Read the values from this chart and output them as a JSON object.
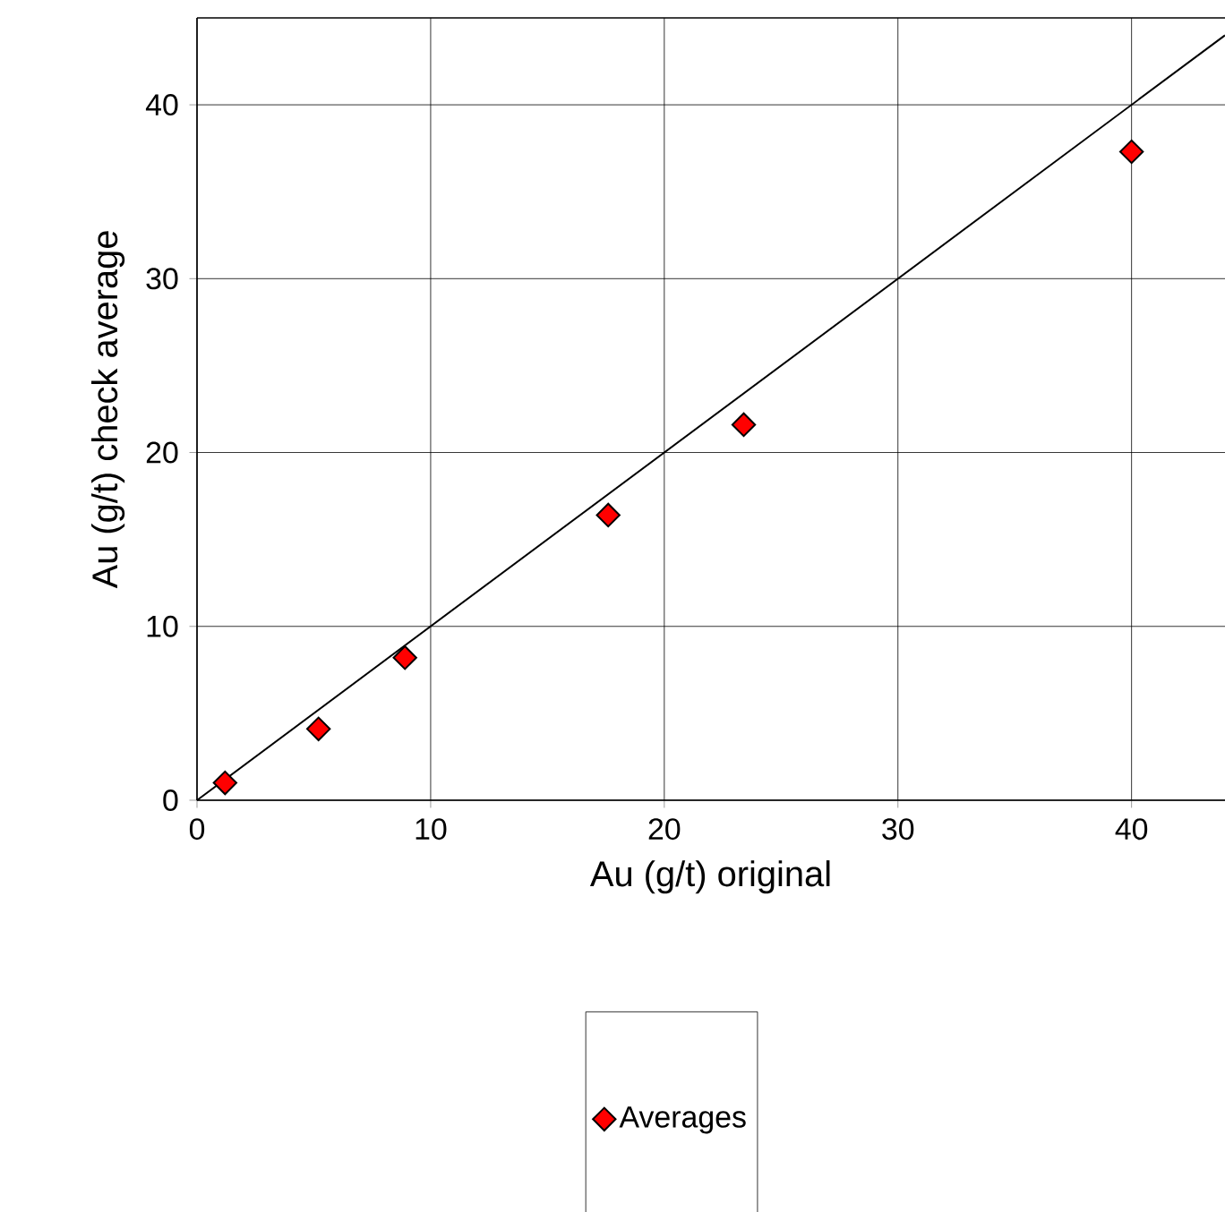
{
  "chart_data": {
    "type": "scatter",
    "xlabel": "Au (g/t) original",
    "ylabel": "Au (g/t) check average",
    "series": [
      {
        "name": "Averages",
        "type": "scatter",
        "color": "#ff0000",
        "marker": "diamond",
        "x": [
          1.2,
          5.2,
          8.9,
          17.6,
          23.4,
          40.0
        ],
        "values": [
          1.0,
          4.1,
          8.2,
          16.4,
          21.6,
          37.3
        ]
      },
      {
        "type": "line",
        "color": "#000000",
        "x": [
          0,
          44
        ],
        "values": [
          0,
          44
        ]
      }
    ],
    "xlim": [
      0,
      44
    ],
    "ylim": [
      0,
      45
    ],
    "xticks": [
      0,
      10,
      20,
      30,
      40
    ],
    "yticks": [
      0,
      10,
      20,
      30,
      40
    ],
    "grid": true,
    "legend": "bottom"
  }
}
